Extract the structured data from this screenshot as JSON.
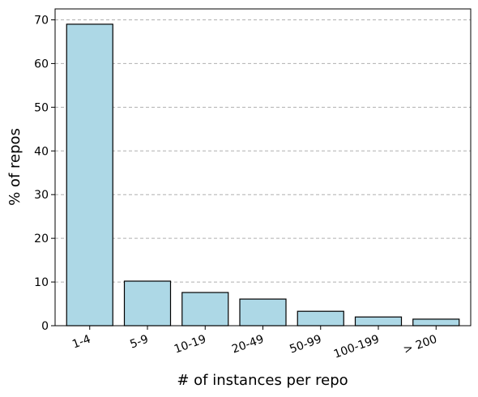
{
  "chart_data": {
    "type": "bar",
    "categories": [
      "1-4",
      "5-9",
      "10-19",
      "20-49",
      "50-99",
      "100-199",
      "> 200"
    ],
    "values": [
      69.0,
      10.2,
      7.6,
      6.1,
      3.3,
      2.0,
      1.5
    ],
    "title": "",
    "xlabel": "# of instances per repo",
    "ylabel": "% of repos",
    "ylim": [
      0,
      72.5
    ],
    "yticks": [
      0,
      10,
      20,
      30,
      40,
      50,
      60,
      70
    ],
    "grid": "y-dashed",
    "bar_color": "#add8e6",
    "edge_color": "#000000",
    "grid_color": "#b0b0b0",
    "xtick_rotation_deg": 20
  }
}
